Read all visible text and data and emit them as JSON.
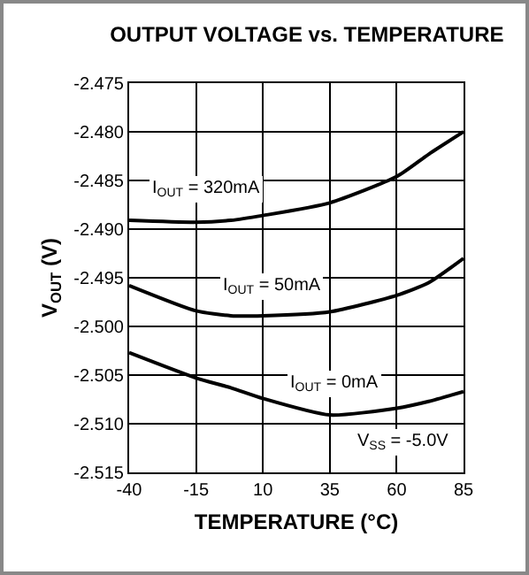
{
  "chart_data": {
    "type": "line",
    "title": "OUTPUT VOLTAGE vs. TEMPERATURE",
    "xlabel": "TEMPERATURE (°C)",
    "ylabel": "V$_{OUT}$ (V)",
    "x": [
      -40,
      -15,
      -2,
      10,
      35,
      60,
      72,
      85
    ],
    "series": [
      {
        "name": "I$_{OUT}$ = 320mA",
        "color": "#000000",
        "values": [
          -2.4891,
          -2.4893,
          -2.4891,
          -2.4886,
          -2.4873,
          -2.4846,
          -2.4823,
          -2.48
        ]
      },
      {
        "name": "I$_{OUT}$ = 50mA",
        "color": "#000000",
        "values": [
          -2.4958,
          -2.4984,
          -2.4989,
          -2.4989,
          -2.4985,
          -2.4968,
          -2.4955,
          -2.493
        ]
      },
      {
        "name": "I$_{OUT}$ = 0mA",
        "color": "#000000",
        "values": [
          -2.5027,
          -2.5053,
          -2.5063,
          -2.5074,
          -2.5091,
          -2.5084,
          -2.5077,
          -2.5067
        ]
      }
    ],
    "annotations": [
      "V$_{SS}$ = -5.0V"
    ],
    "xlim": [
      -40,
      85
    ],
    "xticks": [
      -40,
      -15,
      10,
      35,
      60,
      85
    ],
    "ylim": [
      -2.515,
      -2.475
    ],
    "yticks": [
      -2.515,
      {
        "value": -2.51,
        "label": "-2.510"
      },
      -2.505,
      {
        "value": -2.5,
        "label": "-2.500"
      },
      -2.495,
      {
        "value": -2.49,
        "label": "-2.490"
      },
      -2.485,
      {
        "value": -2.48,
        "label": "-2.480"
      },
      -2.475
    ],
    "grid": true,
    "legend": false,
    "marker": "none",
    "line_style": "solid"
  }
}
